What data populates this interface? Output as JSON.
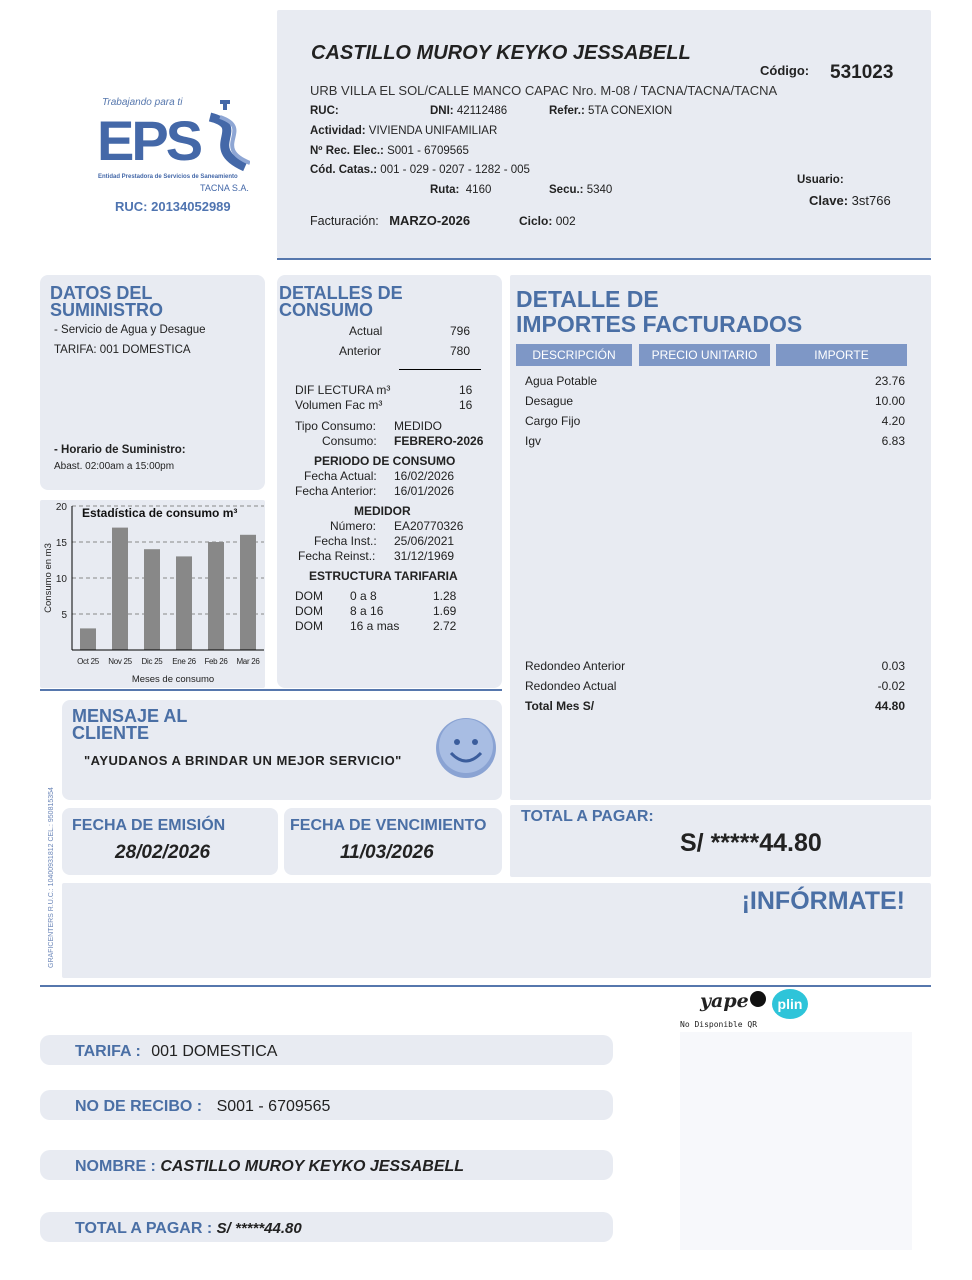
{
  "logo": {
    "tagline": "Trabajando para ti",
    "brand": "EPS",
    "entity": "Entidad Prestadora de Servicios de Saneamiento",
    "company": "TACNA S.A.",
    "ruc": "RUC: 20134052989"
  },
  "header": {
    "name": "CASTILLO MUROY KEYKO JESSABELL",
    "codigo_label": "Código:",
    "codigo": "531023",
    "address": "URB VILLA EL SOL/CALLE MANCO CAPAC Nro. M-08 / TACNA/TACNA/TACNA",
    "ruc_label": "RUC:",
    "ruc": "",
    "dni_label": "DNI:",
    "dni": "42112486",
    "refer_label": "Refer.:",
    "refer": "5TA CONEXION",
    "actividad_label": "Actividad:",
    "actividad": "VIVIENDA UNIFAMILIAR",
    "rec_label": "Nº Rec. Elec.:",
    "rec": "S001 - 6709565",
    "catas_label": "Cód. Catas.:",
    "catas": "001 - 029 - 0207 - 1282 - 005",
    "ruta_label": "Ruta:",
    "ruta": "4160",
    "secu_label": "Secu.:",
    "secu": "5340",
    "usuario_label": "Usuario:",
    "clave_label": "Clave:",
    "clave": "3st766",
    "facturacion_label": "Facturación:",
    "facturacion": "MARZO-2026",
    "ciclo_label": "Ciclo:",
    "ciclo": "002"
  },
  "suministro": {
    "title": "DATOS DEL SUMINISTRO",
    "servicio": "- Servicio de Agua y Desague",
    "tarifa": "TARIFA: 001 DOMESTICA",
    "horario_label": "- Horario de Suministro:",
    "horario": "Abast. 02:00am a 15:00pm"
  },
  "chart_data": {
    "type": "bar",
    "title": "Estadística de consumo m³",
    "xlabel": "Meses de consumo",
    "ylabel": "Consumo en m3",
    "categories": [
      "Oct 25",
      "Nov 25",
      "Dic 25",
      "Ene 26",
      "Feb 26",
      "Mar 26"
    ],
    "values": [
      3,
      17,
      14,
      13,
      15,
      16
    ],
    "ylim": [
      0,
      20
    ],
    "yticks": [
      5,
      10,
      15,
      20
    ],
    "grid": true
  },
  "consumo": {
    "title": "DETALLES DE CONSUMO",
    "actual_label": "Actual",
    "actual": "796",
    "anterior_label": "Anterior",
    "anterior": "780",
    "dif_label": "DIF LECTURA m³",
    "dif": "16",
    "vol_label": "Volumen Fac m³",
    "vol": "16",
    "tipo_label": "Tipo Consumo:",
    "tipo": "MEDIDO",
    "consumo_label": "Consumo:",
    "consumo": "FEBRERO-2026",
    "periodo_title": "PERIODO DE CONSUMO",
    "f_actual_label": "Fecha Actual:",
    "f_actual": "16/02/2026",
    "f_anterior_label": "Fecha Anterior:",
    "f_anterior": "16/01/2026",
    "medidor_title": "MEDIDOR",
    "numero_label": "Número:",
    "numero": "EA20770326",
    "f_inst_label": "Fecha Inst.:",
    "f_inst": "25/06/2021",
    "f_reinst_label": "Fecha Reinst.:",
    "f_reinst": "31/12/1969",
    "estructura_title": "ESTRUCTURA TARIFARIA",
    "tarifas": [
      [
        "DOM",
        "0 a 8",
        "1.28"
      ],
      [
        "DOM",
        "8 a 16",
        "1.69"
      ],
      [
        "DOM",
        "16 a mas",
        "2.72"
      ]
    ]
  },
  "importes": {
    "title1": "DETALLE DE",
    "title2": "IMPORTES FACTURADOS",
    "headers": [
      "DESCRIPCIÓN",
      "PRECIO UNITARIO",
      "IMPORTE"
    ],
    "items": [
      [
        "Agua Potable",
        "23.76"
      ],
      [
        "Desague",
        "10.00"
      ],
      [
        "Cargo Fijo",
        "4.20"
      ],
      [
        "Igv",
        "6.83"
      ]
    ],
    "footer": [
      [
        "Redondeo Anterior",
        "0.03"
      ],
      [
        "Redondeo Actual",
        "-0.02"
      ],
      [
        "Total Mes S/",
        "44.80"
      ]
    ]
  },
  "mensaje": {
    "title": "MENSAJE AL CLIENTE",
    "text": "\"AYUDANOS A BRINDAR UN MEJOR SERVICIO\""
  },
  "emision": {
    "label": "FECHA DE EMISIÓN",
    "date": "28/02/2026"
  },
  "vencimiento": {
    "label": "FECHA DE VENCIMIENTO",
    "date": "11/03/2026"
  },
  "total": {
    "label": "TOTAL A PAGAR:",
    "amount": "S/ *****44.80"
  },
  "informate": "¡INFÓRMATE!",
  "printer": "GRAFICENTERS R.U.C.: 10400931812 CEL.: 950815354",
  "payment": {
    "yape": "yape",
    "plin": "plin",
    "qr": "No Disponible QR"
  },
  "bottom": [
    {
      "label": "TARIFA :",
      "value": "001 DOMESTICA"
    },
    {
      "label": "NO DE RECIBO :",
      "value": "S001 - 6709565"
    },
    {
      "label": "NOMBRE :",
      "value": "CASTILLO MUROY KEYKO JESSABELL"
    },
    {
      "label": "TOTAL A PAGAR :",
      "value": "S/ *****44.80"
    }
  ]
}
